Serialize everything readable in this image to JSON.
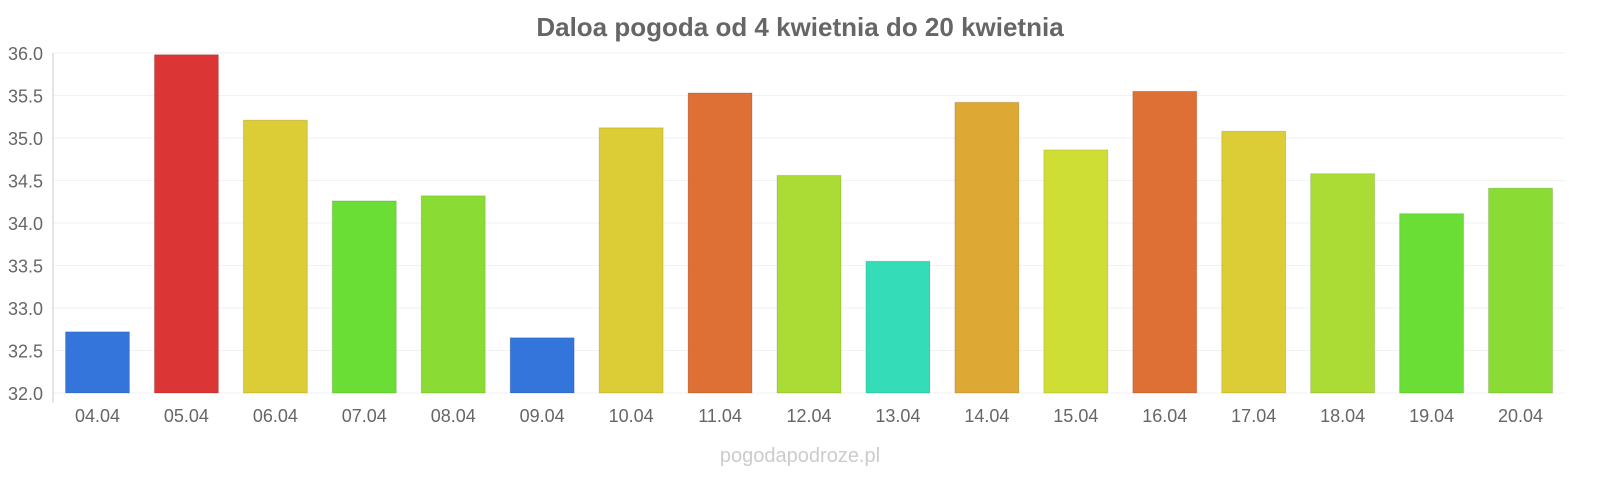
{
  "chart_data": {
    "type": "bar",
    "title": "Daloa pogoda od 4 kwietnia do 20 kwietnia",
    "xlabel": "",
    "ylabel": "",
    "ylim": [
      32.0,
      36.0
    ],
    "yticks": [
      "32.0",
      "32.5",
      "33.0",
      "33.5",
      "34.0",
      "34.5",
      "35.0",
      "35.5",
      "36.0"
    ],
    "grid": true,
    "categories": [
      "04.04",
      "05.04",
      "06.04",
      "07.04",
      "08.04",
      "09.04",
      "10.04",
      "11.04",
      "12.04",
      "13.04",
      "14.04",
      "15.04",
      "16.04",
      "17.04",
      "18.04",
      "19.04",
      "20.04"
    ],
    "values": [
      32.72,
      35.98,
      35.21,
      34.26,
      34.32,
      32.65,
      35.12,
      35.53,
      34.56,
      33.55,
      35.42,
      34.86,
      35.55,
      35.08,
      34.58,
      34.11,
      34.41
    ],
    "colors": [
      "#3375db",
      "#dc3535",
      "#dccc35",
      "#6ade35",
      "#8adc35",
      "#3375db",
      "#dccc35",
      "#de7035",
      "#abdc35",
      "#35dcb8",
      "#dea835",
      "#cede35",
      "#de7035",
      "#dccc35",
      "#abdc35",
      "#6ade35",
      "#8adc35"
    ]
  },
  "watermark": "pogodapodroze.pl"
}
